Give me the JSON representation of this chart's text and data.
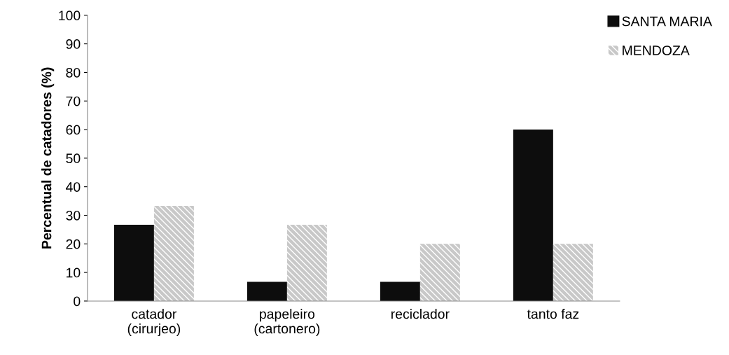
{
  "chart_data": {
    "type": "bar",
    "ylabel": "Percentual de catadores (%)",
    "categories": [
      "catador\n(cirurjeo)",
      "papeleiro\n(cartonero)",
      "reciclador",
      "tanto faz"
    ],
    "series": [
      {
        "name": "SANTA MARIA",
        "color": "#0d0d0d",
        "values": [
          26.7,
          6.7,
          6.7,
          60
        ]
      },
      {
        "name": "MENDOZA",
        "color": "#c8c8c8",
        "values": [
          33.3,
          26.7,
          20,
          20
        ]
      }
    ],
    "ylim": [
      0,
      100
    ],
    "yticks": [
      0,
      10,
      20,
      30,
      40,
      50,
      60,
      70,
      80,
      90,
      100
    ],
    "grid": false,
    "legend": "top right"
  }
}
